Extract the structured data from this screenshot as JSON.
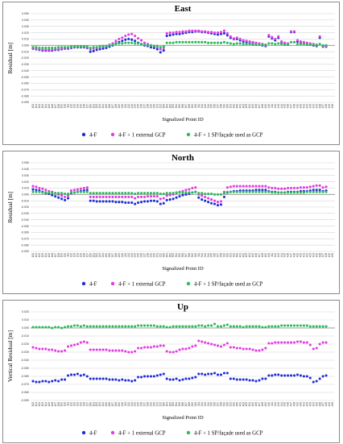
{
  "colors": {
    "s0": "#1f2fd6",
    "s1": "#e23ce2",
    "s2": "#2cba5a"
  },
  "legend_labels": [
    "4-F",
    "4-F + 1 external GCP",
    "4-F + 1 SP/façade used as GCP"
  ],
  "point_ids": [
    "100",
    "101",
    "102",
    "103",
    "104",
    "105",
    "106",
    "107",
    "108",
    "109",
    "110",
    "111",
    "112",
    "113",
    "114",
    "115",
    "116",
    "117",
    "200",
    "201",
    "202",
    "203",
    "204",
    "205",
    "206",
    "207",
    "208",
    "209",
    "210",
    "211",
    "212",
    "213",
    "214",
    "215",
    "216",
    "217",
    "218",
    "219",
    "220",
    "221",
    "222",
    "300",
    "301",
    "302",
    "303",
    "304",
    "305",
    "306",
    "307",
    "308",
    "309",
    "310",
    "311",
    "312",
    "313",
    "314",
    "315",
    "316",
    "317",
    "318",
    "319",
    "320",
    "321",
    "322",
    "400",
    "401",
    "402",
    "403",
    "404",
    "405",
    "406",
    "407",
    "408",
    "409",
    "410",
    "411",
    "412",
    "413",
    "414",
    "415",
    "416",
    "417",
    "418",
    "419",
    "420",
    "421",
    "422",
    "423",
    "424",
    "425",
    "426",
    "427",
    "428",
    "429",
    "430"
  ],
  "chart_data": [
    {
      "type": "scatter",
      "title": "East",
      "xlabel": "Signalized Point ID",
      "ylabel": "Residual [m]",
      "ylim": [
        -0.09,
        0.05
      ],
      "yticks": [
        "0.050",
        "0.040",
        "0.030",
        "0.020",
        "0.010",
        "0.000",
        "-0.010",
        "-0.020",
        "-0.030",
        "-0.040",
        "-0.050",
        "-0.060",
        "-0.070",
        "-0.080",
        "-0.090"
      ],
      "grid": true,
      "legend": "bottom",
      "series": [
        {
          "name": "4-F",
          "values": [
            -0.005,
            -0.006,
            -0.007,
            -0.008,
            -0.008,
            -0.008,
            -0.008,
            -0.007,
            -0.007,
            -0.006,
            -0.005,
            -0.005,
            -0.004,
            -0.003,
            -0.003,
            -0.003,
            -0.003,
            -0.004,
            -0.01,
            -0.009,
            -0.007,
            -0.006,
            -0.005,
            -0.004,
            -0.002,
            0.0,
            0.003,
            0.005,
            0.007,
            0.009,
            0.01,
            0.009,
            0.007,
            0.004,
            0.002,
            0.0,
            -0.001,
            -0.003,
            -0.004,
            -0.006,
            -0.011,
            -0.008,
            0.015,
            0.016,
            0.017,
            0.018,
            0.018,
            0.019,
            0.02,
            0.021,
            0.021,
            0.022,
            0.022,
            0.021,
            0.021,
            0.02,
            0.019,
            0.018,
            0.017,
            0.018,
            0.019,
            0.016,
            0.012,
            0.01,
            0.01,
            0.008,
            0.006,
            0.005,
            0.004,
            0.003,
            0.002,
            0.001,
            0.0,
            -0.001,
            0.014,
            0.011,
            0.008,
            0.012,
            0.004,
            0.002,
            0.001,
            0.021,
            0.021,
            0.006,
            0.004,
            0.003,
            0.002,
            0.001,
            0.0,
            -0.001,
            0.012,
            -0.002,
            -0.002
          ]
        },
        {
          "name": "4-F + 1 external GCP",
          "values": [
            -0.004,
            -0.005,
            -0.006,
            -0.007,
            -0.007,
            -0.007,
            -0.007,
            -0.006,
            -0.006,
            -0.005,
            -0.004,
            -0.004,
            -0.003,
            -0.002,
            -0.002,
            -0.002,
            -0.002,
            -0.003,
            -0.006,
            -0.005,
            -0.004,
            -0.003,
            -0.002,
            -0.001,
            0.001,
            0.003,
            0.007,
            0.01,
            0.012,
            0.015,
            0.017,
            0.018,
            0.015,
            0.011,
            0.008,
            0.004,
            0.002,
            0.0,
            -0.001,
            -0.003,
            -0.006,
            -0.004,
            0.019,
            0.02,
            0.02,
            0.021,
            0.021,
            0.022,
            0.022,
            0.023,
            0.023,
            0.023,
            0.023,
            0.022,
            0.022,
            0.021,
            0.021,
            0.02,
            0.02,
            0.021,
            0.023,
            0.019,
            0.014,
            0.011,
            0.012,
            0.01,
            0.008,
            0.007,
            0.006,
            0.005,
            0.004,
            0.003,
            0.002,
            0.001,
            0.016,
            0.013,
            0.01,
            0.014,
            0.006,
            0.004,
            0.003,
            0.022,
            0.022,
            0.008,
            0.006,
            0.005,
            0.004,
            0.003,
            0.002,
            0.001,
            0.014,
            -0.001,
            -0.001
          ]
        },
        {
          "name": "4-F + 1 SP/façade used as GCP",
          "values": [
            -0.003,
            -0.003,
            -0.004,
            -0.004,
            -0.004,
            -0.004,
            -0.004,
            -0.004,
            -0.003,
            -0.003,
            -0.003,
            -0.003,
            -0.002,
            -0.002,
            -0.002,
            -0.002,
            -0.002,
            -0.002,
            -0.004,
            -0.003,
            -0.003,
            -0.002,
            -0.001,
            -0.001,
            0.0,
            0.001,
            0.002,
            0.003,
            0.003,
            0.004,
            0.004,
            0.004,
            0.003,
            0.003,
            0.002,
            0.001,
            0.0,
            0.0,
            -0.001,
            -0.001,
            -0.003,
            -0.002,
            0.004,
            0.004,
            0.004,
            0.005,
            0.005,
            0.005,
            0.005,
            0.005,
            0.005,
            0.005,
            0.005,
            0.005,
            0.005,
            0.004,
            0.004,
            0.004,
            0.004,
            0.004,
            0.005,
            0.004,
            0.003,
            0.002,
            0.003,
            0.003,
            0.002,
            0.002,
            0.002,
            0.001,
            0.001,
            0.001,
            0.001,
            0.0,
            0.003,
            0.003,
            0.002,
            0.003,
            0.002,
            0.001,
            0.001,
            0.005,
            0.005,
            0.002,
            0.002,
            0.002,
            0.001,
            0.001,
            0.001,
            0.0,
            0.002,
            0.0,
            0.0
          ]
        }
      ]
    },
    {
      "type": "scatter",
      "title": "North",
      "xlabel": "Signalized Point ID",
      "ylabel": "Residual [m]",
      "ylim": [
        -0.09,
        0.05
      ],
      "yticks": [
        "0.050",
        "0.040",
        "0.030",
        "0.020",
        "0.010",
        "0.000",
        "-0.010",
        "-0.020",
        "-0.030",
        "-0.040",
        "-0.050",
        "-0.060",
        "-0.070",
        "-0.080",
        "-0.090"
      ],
      "grid": true,
      "legend": "bottom",
      "series": [
        {
          "name": "4-F",
          "values": [
            0.008,
            0.007,
            0.006,
            0.004,
            0.002,
            0.001,
            -0.001,
            -0.003,
            -0.005,
            -0.007,
            -0.009,
            -0.006,
            0.002,
            0.003,
            0.004,
            0.005,
            0.006,
            0.007,
            -0.01,
            -0.01,
            -0.011,
            -0.011,
            -0.011,
            -0.011,
            -0.011,
            -0.011,
            -0.012,
            -0.012,
            -0.012,
            -0.013,
            -0.013,
            -0.013,
            -0.015,
            -0.013,
            -0.012,
            -0.011,
            -0.011,
            -0.01,
            -0.01,
            -0.011,
            -0.015,
            -0.014,
            -0.009,
            -0.008,
            -0.007,
            -0.005,
            -0.003,
            -0.001,
            0.0,
            0.001,
            0.003,
            0.004,
            -0.005,
            -0.008,
            -0.01,
            -0.012,
            -0.014,
            -0.015,
            -0.017,
            -0.016,
            -0.004,
            0.003,
            0.004,
            0.005,
            0.005,
            0.006,
            0.006,
            0.006,
            0.006,
            0.006,
            0.007,
            0.007,
            0.007,
            0.007,
            0.005,
            0.004,
            0.004,
            0.003,
            0.003,
            0.003,
            0.004,
            0.004,
            0.004,
            0.004,
            0.005,
            0.005,
            0.005,
            0.006,
            0.007,
            0.007,
            0.007,
            0.005,
            0.006
          ]
        },
        {
          "name": "4-F + 1 external GCP",
          "values": [
            0.013,
            0.012,
            0.01,
            0.009,
            0.007,
            0.005,
            0.004,
            0.002,
            0.0,
            -0.002,
            -0.004,
            -0.002,
            0.006,
            0.007,
            0.008,
            0.009,
            0.01,
            0.011,
            -0.004,
            -0.004,
            -0.004,
            -0.004,
            -0.004,
            -0.004,
            -0.004,
            -0.004,
            -0.004,
            -0.004,
            -0.004,
            -0.004,
            -0.004,
            -0.004,
            -0.006,
            -0.004,
            -0.004,
            -0.004,
            -0.003,
            -0.003,
            -0.003,
            -0.003,
            -0.007,
            -0.006,
            -0.002,
            -0.001,
            0.0,
            0.002,
            0.004,
            0.005,
            0.007,
            0.008,
            0.01,
            0.011,
            0.0,
            -0.002,
            -0.004,
            -0.006,
            -0.008,
            -0.01,
            -0.012,
            -0.011,
            0.004,
            0.011,
            0.012,
            0.013,
            0.013,
            0.013,
            0.013,
            0.013,
            0.013,
            0.013,
            0.013,
            0.013,
            0.013,
            0.013,
            0.011,
            0.01,
            0.01,
            0.009,
            0.009,
            0.009,
            0.01,
            0.01,
            0.01,
            0.01,
            0.011,
            0.011,
            0.011,
            0.012,
            0.013,
            0.014,
            0.014,
            0.011,
            0.012
          ]
        },
        {
          "name": "4-F + 1 SP/façade used as GCP",
          "values": [
            0.004,
            0.004,
            0.004,
            0.003,
            0.003,
            0.003,
            0.002,
            0.002,
            0.002,
            0.002,
            0.001,
            0.001,
            0.003,
            0.003,
            0.004,
            0.004,
            0.004,
            0.004,
            0.002,
            0.002,
            0.002,
            0.002,
            0.002,
            0.002,
            0.002,
            0.002,
            0.002,
            0.002,
            0.002,
            0.002,
            0.002,
            0.002,
            0.001,
            0.002,
            0.002,
            0.002,
            0.002,
            0.002,
            0.002,
            0.002,
            0.001,
            0.001,
            0.002,
            0.002,
            0.002,
            0.003,
            0.003,
            0.003,
            0.003,
            0.003,
            0.003,
            0.004,
            0.002,
            0.002,
            0.001,
            0.001,
            0.001,
            0.0,
            0.0,
            0.0,
            0.002,
            0.004,
            0.004,
            0.004,
            0.004,
            0.004,
            0.004,
            0.004,
            0.004,
            0.004,
            0.004,
            0.004,
            0.004,
            0.004,
            0.004,
            0.003,
            0.003,
            0.003,
            0.003,
            0.003,
            0.003,
            0.003,
            0.003,
            0.003,
            0.003,
            0.003,
            0.004,
            0.004,
            0.004,
            0.004,
            0.004,
            0.004,
            0.004
          ]
        }
      ]
    },
    {
      "type": "scatter",
      "title": "Up",
      "xlabel": "Signalized Point ID",
      "ylabel": "Vertical Residual [m]",
      "ylim": [
        -0.09,
        0.02
      ],
      "yticks": [
        "0.020",
        "0.010",
        "0.000",
        "-0.010",
        "-0.020",
        "-0.030",
        "-0.040",
        "-0.050",
        "-0.060",
        "-0.070",
        "-0.080",
        "-0.090"
      ],
      "grid": true,
      "legend": "bottom",
      "series": [
        {
          "name": "4-F",
          "values": [
            -0.066,
            -0.067,
            -0.067,
            -0.066,
            -0.066,
            -0.067,
            -0.066,
            -0.065,
            -0.066,
            -0.064,
            -0.064,
            -0.059,
            -0.058,
            -0.058,
            -0.057,
            -0.059,
            -0.058,
            -0.06,
            -0.063,
            -0.063,
            -0.063,
            -0.063,
            -0.063,
            -0.063,
            -0.064,
            -0.064,
            -0.064,
            -0.065,
            -0.064,
            -0.065,
            -0.065,
            -0.066,
            -0.065,
            -0.061,
            -0.061,
            -0.06,
            -0.06,
            -0.06,
            -0.06,
            -0.059,
            -0.058,
            -0.057,
            -0.063,
            -0.064,
            -0.064,
            -0.063,
            -0.065,
            -0.064,
            -0.063,
            -0.063,
            -0.062,
            -0.061,
            -0.057,
            -0.057,
            -0.058,
            -0.057,
            -0.057,
            -0.056,
            -0.058,
            -0.058,
            -0.056,
            -0.056,
            -0.063,
            -0.063,
            -0.064,
            -0.064,
            -0.064,
            -0.064,
            -0.065,
            -0.065,
            -0.066,
            -0.065,
            -0.063,
            -0.063,
            -0.059,
            -0.059,
            -0.058,
            -0.058,
            -0.059,
            -0.059,
            -0.059,
            -0.059,
            -0.059,
            -0.058,
            -0.059,
            -0.06,
            -0.06,
            -0.062,
            -0.067,
            -0.066,
            -0.063,
            -0.06,
            -0.059
          ]
        },
        {
          "name": "4-F + 1 external GCP",
          "values": [
            -0.024,
            -0.025,
            -0.026,
            -0.026,
            -0.026,
            -0.027,
            -0.027,
            -0.028,
            -0.029,
            -0.029,
            -0.028,
            -0.023,
            -0.022,
            -0.021,
            -0.02,
            -0.018,
            -0.017,
            -0.018,
            -0.027,
            -0.027,
            -0.027,
            -0.027,
            -0.027,
            -0.027,
            -0.028,
            -0.028,
            -0.028,
            -0.028,
            -0.028,
            -0.029,
            -0.03,
            -0.03,
            -0.029,
            -0.025,
            -0.025,
            -0.024,
            -0.024,
            -0.024,
            -0.023,
            -0.023,
            -0.022,
            -0.022,
            -0.029,
            -0.03,
            -0.03,
            -0.029,
            -0.027,
            -0.026,
            -0.026,
            -0.025,
            -0.023,
            -0.022,
            -0.016,
            -0.017,
            -0.018,
            -0.019,
            -0.02,
            -0.021,
            -0.022,
            -0.023,
            -0.021,
            -0.019,
            -0.024,
            -0.024,
            -0.025,
            -0.025,
            -0.026,
            -0.026,
            -0.026,
            -0.027,
            -0.028,
            -0.028,
            -0.027,
            -0.025,
            -0.019,
            -0.019,
            -0.018,
            -0.018,
            -0.018,
            -0.018,
            -0.018,
            -0.018,
            -0.018,
            -0.017,
            -0.017,
            -0.018,
            -0.018,
            -0.021,
            -0.026,
            -0.025,
            -0.02,
            -0.018,
            -0.018
          ]
        },
        {
          "name": "4-F + 1 SP/façade used as GCP",
          "values": [
            0.001,
            0.001,
            0.001,
            0.001,
            0.001,
            0.001,
            0.0,
            0.001,
            0.001,
            0.0,
            0.001,
            0.002,
            0.002,
            0.003,
            0.003,
            0.002,
            0.003,
            0.002,
            0.002,
            0.002,
            0.002,
            0.002,
            0.002,
            0.002,
            0.002,
            0.002,
            0.002,
            0.002,
            0.002,
            0.002,
            0.002,
            0.002,
            0.002,
            0.003,
            0.003,
            0.003,
            0.003,
            0.003,
            0.003,
            0.002,
            0.002,
            0.002,
            0.001,
            0.001,
            0.002,
            0.002,
            0.002,
            0.002,
            0.002,
            0.002,
            0.002,
            0.002,
            0.003,
            0.003,
            0.002,
            0.003,
            0.003,
            0.005,
            0.002,
            0.002,
            0.003,
            0.004,
            0.002,
            0.002,
            0.002,
            0.002,
            0.001,
            0.002,
            0.002,
            0.002,
            0.002,
            0.002,
            0.001,
            0.001,
            0.002,
            0.002,
            0.002,
            0.002,
            0.003,
            0.003,
            0.003,
            0.003,
            0.003,
            0.003,
            0.003,
            0.003,
            0.003,
            0.002,
            0.002,
            0.002,
            0.002,
            0.002,
            0.002
          ]
        }
      ]
    }
  ]
}
